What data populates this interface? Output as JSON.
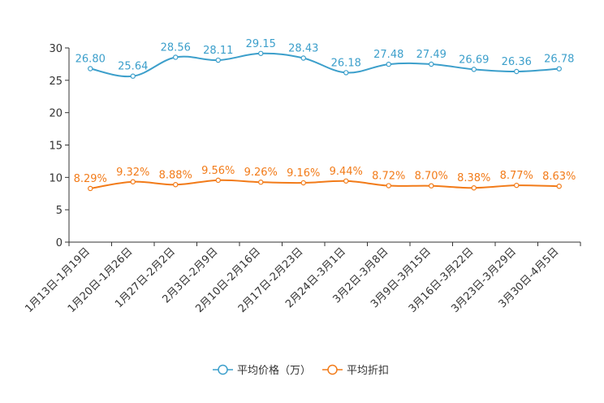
{
  "chart_data": {
    "type": "line",
    "title": "",
    "xlabel": "",
    "ylabel": "",
    "ylim": [
      0,
      30
    ],
    "yticks": [
      0,
      5,
      10,
      15,
      20,
      25,
      30
    ],
    "grid": false,
    "legend_position": "bottom-center",
    "categories": [
      "1月13日-1月19日",
      "1月20日-1月26日",
      "1月27日-2月2日",
      "2月3日-2月9日",
      "2月10日-2月16日",
      "2月17日-2月23日",
      "2月24日-3月1日",
      "3月2日-3月8日",
      "3月9日-3月15日",
      "3月16日-3月22日",
      "3月23日-3月29日",
      "3月30日-4月5日"
    ],
    "series": [
      {
        "name": "平均价格（万）",
        "color": "#3c9fcb",
        "values": [
          26.8,
          25.64,
          28.56,
          28.11,
          29.15,
          28.43,
          26.18,
          27.48,
          27.49,
          26.69,
          26.36,
          26.78
        ],
        "labels": [
          "26.80",
          "25.64",
          "28.56",
          "28.11",
          "29.15",
          "28.43",
          "26.18",
          "27.48",
          "27.49",
          "26.69",
          "26.36",
          "26.78"
        ]
      },
      {
        "name": "平均折扣",
        "color": "#f27b19",
        "values": [
          8.29,
          9.32,
          8.88,
          9.56,
          9.26,
          9.16,
          9.44,
          8.72,
          8.7,
          8.38,
          8.77,
          8.63
        ],
        "labels": [
          "8.29%",
          "9.32%",
          "8.88%",
          "9.56%",
          "9.26%",
          "9.16%",
          "9.44%",
          "8.72%",
          "8.70%",
          "8.38%",
          "8.77%",
          "8.63%"
        ]
      }
    ]
  }
}
